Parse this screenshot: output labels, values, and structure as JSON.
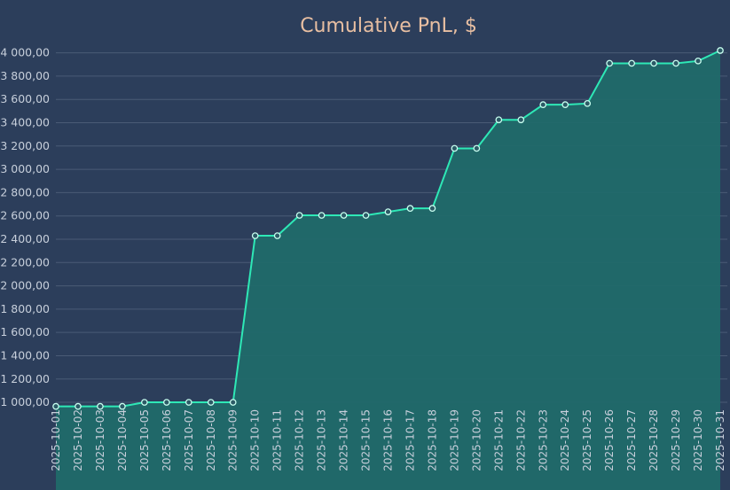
{
  "chart_data": {
    "type": "area",
    "title": "Cumulative PnL, $",
    "xlabel": "",
    "ylabel": "",
    "ylim": [
      970,
      4020
    ],
    "grid": true,
    "colors": {
      "line": "#2ee8b6",
      "fill": "#206a6a",
      "background": "#2c3e5b",
      "title": "#e8bfa2"
    },
    "yticks": [
      {
        "value": 1000,
        "label": "1 000,00"
      },
      {
        "value": 1200,
        "label": "1 200,00"
      },
      {
        "value": 1400,
        "label": "1 400,00"
      },
      {
        "value": 1600,
        "label": "1 600,00"
      },
      {
        "value": 1800,
        "label": "1 800,00"
      },
      {
        "value": 2000,
        "label": "2 000,00"
      },
      {
        "value": 2200,
        "label": "2 200,00"
      },
      {
        "value": 2400,
        "label": "2 400,00"
      },
      {
        "value": 2600,
        "label": "2 600,00"
      },
      {
        "value": 2800,
        "label": "2 800,00"
      },
      {
        "value": 3000,
        "label": "3 000,00"
      },
      {
        "value": 3200,
        "label": "3 200,00"
      },
      {
        "value": 3400,
        "label": "3 400,00"
      },
      {
        "value": 3600,
        "label": "3 600,00"
      },
      {
        "value": 3800,
        "label": "3 800,00"
      },
      {
        "value": 4000,
        "label": "4 000,00"
      }
    ],
    "x": [
      "2025-10-01",
      "2025-10-02",
      "2025-10-03",
      "2025-10-04",
      "2025-10-05",
      "2025-10-06",
      "2025-10-07",
      "2025-10-08",
      "2025-10-09",
      "2025-10-10",
      "2025-10-11",
      "2025-10-12",
      "2025-10-13",
      "2025-10-14",
      "2025-10-15",
      "2025-10-16",
      "2025-10-17",
      "2025-10-18",
      "2025-10-19",
      "2025-10-20",
      "2025-10-21",
      "2025-10-22",
      "2025-10-23",
      "2025-10-24",
      "2025-10-25",
      "2025-10-26",
      "2025-10-27",
      "2025-10-28",
      "2025-10-29",
      "2025-10-30",
      "2025-10-31"
    ],
    "values": [
      965,
      965,
      965,
      965,
      1000,
      1000,
      1000,
      1000,
      1000,
      2430,
      2430,
      2605,
      2605,
      2605,
      2605,
      2635,
      2665,
      2665,
      3180,
      3180,
      3425,
      3425,
      3555,
      3555,
      3565,
      3910,
      3910,
      3910,
      3910,
      3930,
      4020
    ]
  }
}
